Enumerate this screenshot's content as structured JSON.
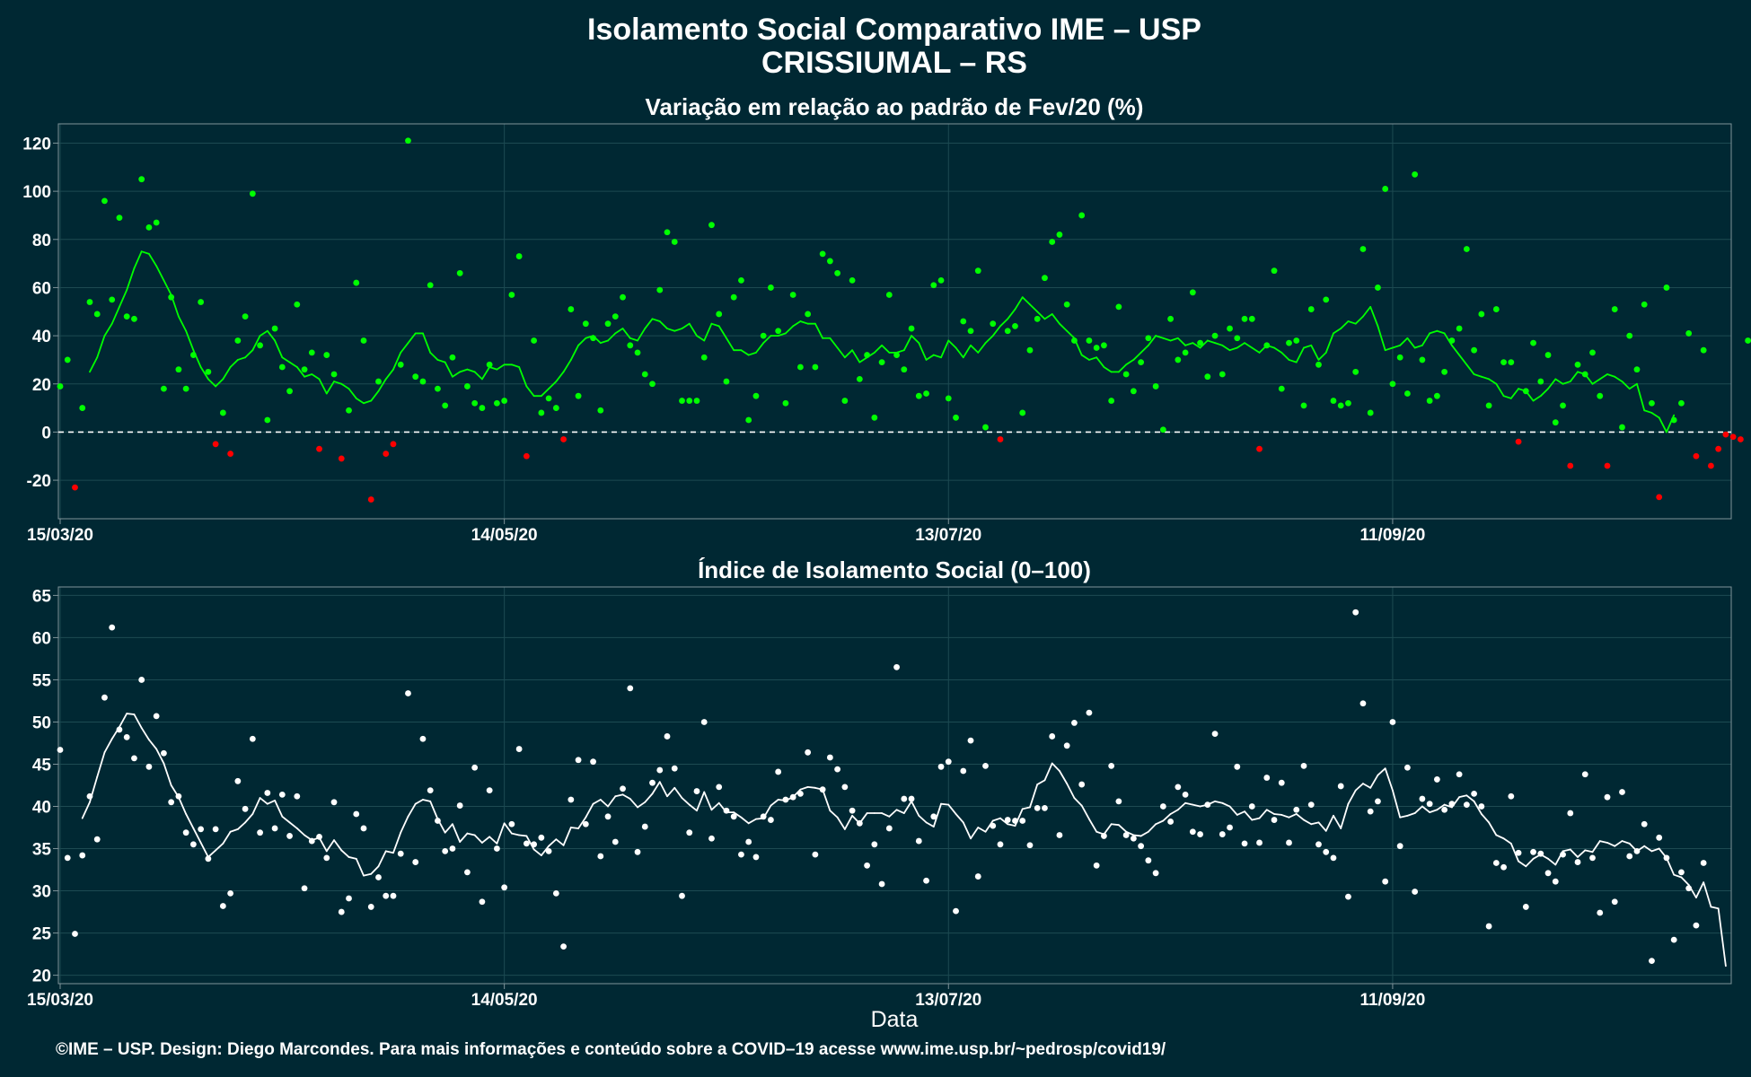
{
  "title": "Isolamento Social Comparativo IME – USP",
  "subtitle": "CRISSIUMAL – RS",
  "xlabel": "Data",
  "caption": "©IME – USP. Design: Diego Marcondes. Para mais informações e conteúdo sobre a COVID–19 acesse www.ime.usp.br/~pedrosp/covid19/",
  "colors": {
    "background": "#002833",
    "positive": "#00ff00",
    "negative": "#ff0000",
    "index": "#ffffff"
  },
  "chart_data": [
    {
      "type": "scatter",
      "title": "Variação em relação ao padrão de Fev/20 (%)",
      "x_start": "15/03/20",
      "x_end": "20/10/20",
      "x_ticks": [
        "15/03/20",
        "14/05/20",
        "13/07/20",
        "11/09/20"
      ],
      "y_ticks": [
        -20,
        0,
        20,
        40,
        60,
        80,
        100,
        120
      ],
      "ylim": [
        -36,
        128
      ],
      "reference_line": 0,
      "points_color_rule": "green if value >= 0, red if value < 0",
      "points": [
        19,
        30,
        -23,
        10,
        54,
        49,
        96,
        55,
        89,
        48,
        47,
        105,
        85,
        87,
        18,
        56,
        26,
        18,
        32,
        54,
        25,
        -5,
        8,
        -9,
        38,
        48,
        99,
        36,
        5,
        43,
        27,
        17,
        53,
        26,
        33,
        -7,
        32,
        24,
        -11,
        9,
        62,
        38,
        -28,
        21,
        -9,
        -5,
        28,
        121,
        23,
        21,
        61,
        18,
        11,
        31,
        66,
        19,
        12,
        10,
        28,
        12,
        13,
        57,
        73,
        -10,
        38,
        8,
        14,
        10,
        -3,
        51,
        15,
        45,
        39,
        9,
        45,
        48,
        56,
        36,
        33,
        24,
        20,
        59,
        83,
        79,
        13,
        13,
        13,
        31,
        86,
        49,
        21,
        56,
        63,
        5,
        15,
        40,
        60,
        42,
        12,
        57,
        27,
        49,
        27,
        74,
        71,
        66,
        13,
        63,
        22,
        32,
        6,
        29,
        57,
        32,
        26,
        43,
        15,
        16,
        61,
        63,
        14,
        6,
        46,
        42,
        67,
        2,
        45,
        -3,
        42,
        44,
        8,
        34,
        47,
        64,
        79,
        82,
        53,
        38,
        90,
        38,
        35,
        36,
        13,
        52,
        24,
        17,
        29,
        39,
        19,
        1,
        47,
        30,
        33,
        58,
        37,
        23,
        40,
        24,
        43,
        39,
        47,
        47,
        -7,
        36,
        67,
        18,
        37,
        38,
        11,
        51,
        28,
        55,
        13,
        11,
        12,
        25,
        76,
        8,
        60,
        101,
        20,
        31,
        16,
        107,
        30,
        13,
        15,
        25,
        38,
        43,
        76,
        34,
        49,
        11,
        51,
        29,
        29,
        -4,
        17,
        37,
        21,
        32,
        4,
        11,
        -14,
        28,
        24,
        33,
        15,
        -14,
        51,
        2,
        40,
        26,
        53,
        12,
        -27,
        60,
        5,
        12,
        41,
        -10,
        34,
        -14,
        -7,
        -1,
        -2,
        -3,
        38
      ],
      "moving_average": [
        null,
        null,
        null,
        null,
        25,
        31,
        40,
        45,
        52,
        59,
        68,
        75,
        74,
        69,
        63,
        57,
        48,
        42,
        34,
        27,
        22,
        19,
        22,
        27,
        30,
        31,
        34,
        40,
        42,
        38,
        31,
        29,
        27,
        23,
        24,
        22,
        16,
        21,
        20,
        18,
        14,
        12,
        13,
        17,
        22,
        26,
        33,
        37,
        41,
        41,
        33,
        30,
        29,
        23,
        25,
        26,
        25,
        22,
        27,
        26,
        28,
        28,
        27,
        19,
        15,
        15,
        18,
        21,
        25,
        30,
        36,
        39,
        40,
        37,
        38,
        41,
        43,
        39,
        38,
        43,
        47,
        46,
        43,
        42,
        43,
        45,
        40,
        38,
        45,
        44,
        39,
        34,
        34,
        32,
        33,
        37,
        40,
        40,
        41,
        44,
        46,
        45,
        45,
        39,
        39,
        35,
        31,
        34,
        29,
        31,
        33,
        36,
        33,
        33,
        34,
        40,
        37,
        30,
        32,
        31,
        38,
        35,
        31,
        36,
        33,
        37,
        40,
        44,
        47,
        51,
        56,
        53,
        50,
        47,
        49,
        45,
        42,
        39,
        32,
        30,
        31,
        27,
        25,
        25,
        28,
        30,
        33,
        36,
        40,
        39,
        38,
        39,
        36,
        37,
        35,
        38,
        37,
        36,
        34,
        35,
        37,
        35,
        33,
        36,
        35,
        33,
        30,
        29,
        35,
        36,
        30,
        33,
        41,
        43,
        46,
        45,
        48,
        52,
        44,
        34,
        35,
        36,
        39,
        35,
        36,
        41,
        42,
        41,
        36,
        32,
        28,
        24,
        23,
        22,
        20,
        15,
        14,
        18,
        17,
        13,
        15,
        18,
        22,
        20,
        21,
        25,
        24,
        20,
        22,
        24,
        23,
        21,
        18,
        20,
        9,
        8,
        6,
        0,
        7
      ]
    },
    {
      "type": "scatter",
      "title": "Índice de Isolamento Social (0–100)",
      "x_start": "15/03/20",
      "x_end": "20/10/20",
      "x_ticks": [
        "15/03/20",
        "14/05/20",
        "13/07/20",
        "11/09/20"
      ],
      "y_ticks": [
        20,
        25,
        30,
        35,
        40,
        45,
        50,
        55,
        60,
        65
      ],
      "ylim": [
        19,
        66
      ],
      "points_color": "white",
      "points": [
        46.7,
        33.9,
        24.9,
        34.2,
        41.2,
        36.1,
        52.9,
        61.2,
        49.1,
        48.2,
        45.7,
        55.0,
        44.7,
        50.7,
        46.3,
        40.5,
        41.2,
        36.9,
        35.5,
        37.3,
        33.8,
        37.3,
        28.2,
        29.7,
        43.0,
        39.7,
        48.0,
        36.9,
        41.6,
        37.4,
        41.4,
        36.5,
        41.2,
        30.3,
        35.9,
        36.4,
        33.9,
        40.5,
        27.5,
        29.1,
        39.1,
        37.4,
        28.1,
        31.6,
        29.4,
        29.4,
        34.4,
        53.4,
        33.4,
        48.0,
        41.9,
        38.3,
        34.7,
        35.0,
        40.1,
        32.2,
        44.6,
        28.7,
        41.9,
        35.0,
        30.4,
        37.9,
        46.8,
        35.6,
        35.5,
        36.3,
        34.7,
        29.7,
        23.4,
        40.8,
        45.5,
        37.9,
        45.3,
        34.1,
        38.8,
        35.8,
        42.1,
        54.0,
        34.6,
        37.6,
        42.8,
        44.3,
        48.3,
        44.5,
        29.4,
        36.9,
        41.8,
        50.0,
        36.2,
        42.3,
        39.5,
        38.8,
        34.3,
        35.8,
        34.0,
        38.8,
        38.4,
        44.1,
        40.8,
        41.1,
        41.5,
        46.4,
        34.3,
        42.0,
        45.8,
        44.4,
        42.3,
        39.5,
        38.0,
        33.0,
        35.5,
        30.8,
        37.4,
        56.5,
        40.9,
        40.9,
        35.9,
        31.2,
        38.8,
        44.7,
        45.3,
        27.6,
        44.2,
        47.8,
        31.7,
        44.8,
        37.7,
        35.5,
        38.4,
        38.3,
        38.3,
        35.4,
        39.8,
        39.8,
        48.3,
        36.6,
        47.2,
        49.9,
        42.6,
        51.1,
        33.0,
        36.5,
        44.8,
        40.6,
        36.6,
        36.2,
        35.3,
        33.6,
        32.1,
        40.0,
        38.2,
        42.3,
        41.4,
        37.0,
        36.7,
        40.2,
        48.6,
        36.7,
        37.5,
        44.7,
        35.6,
        40.0,
        35.7,
        43.4,
        38.4,
        42.8,
        35.7,
        39.6,
        44.8,
        40.2,
        35.5,
        34.6,
        33.9,
        42.4,
        29.3,
        63.0,
        52.2,
        39.4,
        40.6,
        31.1,
        50.0,
        35.3,
        44.6,
        29.9,
        40.9,
        40.3,
        43.2,
        39.6,
        40.3,
        43.8,
        40.2,
        41.5,
        40.0,
        25.8,
        33.3,
        32.8,
        41.2,
        34.5,
        28.1,
        34.6,
        34.4,
        32.1,
        31.1,
        34.3,
        39.2,
        33.4,
        43.8,
        33.9,
        27.4,
        41.1,
        28.7,
        41.7,
        34.1,
        34.7,
        37.9,
        21.7,
        36.3,
        33.9,
        24.2,
        32.2,
        30.3,
        25.9,
        33.3
      ],
      "moving_average": [
        null,
        null,
        null,
        38.6,
        40.5,
        43.5,
        46.4,
        48.0,
        49.4,
        51.0,
        50.9,
        49.3,
        47.9,
        46.8,
        45.1,
        42.5,
        41.1,
        39.1,
        37.4,
        35.7,
        34.0,
        34.8,
        35.6,
        37.0,
        37.3,
        38.1,
        39.1,
        41.0,
        40.3,
        40.7,
        38.8,
        38.1,
        37.4,
        36.6,
        36.0,
        36.3,
        34.7,
        36.0,
        34.8,
        34.0,
        33.8,
        31.8,
        32.0,
        32.9,
        34.7,
        34.5,
        36.9,
        38.8,
        40.3,
        40.8,
        40.6,
        38.5,
        36.9,
        37.9,
        35.8,
        36.8,
        36.6,
        35.7,
        36.4,
        35.6,
        38.0,
        36.8,
        36.6,
        36.5,
        34.9,
        34.2,
        35.3,
        36.1,
        35.4,
        37.5,
        37.4,
        38.7,
        40.3,
        40.8,
        40.0,
        41.2,
        41.4,
        40.9,
        39.9,
        40.5,
        41.5,
        42.9,
        41.2,
        42.2,
        41.0,
        40.2,
        39.5,
        41.7,
        39.6,
        40.4,
        39.3,
        39.3,
        38.7,
        38.0,
        38.5,
        38.6,
        40.1,
        40.8,
        40.7,
        41.1,
        42.0,
        42.3,
        42.2,
        42.0,
        39.5,
        38.7,
        37.3,
        38.9,
        38.0,
        39.2,
        39.2,
        39.2,
        38.8,
        39.6,
        39.2,
        40.6,
        38.9,
        38.1,
        37.6,
        40.3,
        40.2,
        39.1,
        38.1,
        36.2,
        37.5,
        37.0,
        38.3,
        38.6,
        37.9,
        37.7,
        39.7,
        39.9,
        42.6,
        43.1,
        45.1,
        44.2,
        42.7,
        41.0,
        40.1,
        38.5,
        37.0,
        36.7,
        37.9,
        37.8,
        37.0,
        36.6,
        36.5,
        37.0,
        37.9,
        38.3,
        39.1,
        39.6,
        40.4,
        40.2,
        40.0,
        40.2,
        40.6,
        40.4,
        40.0,
        39.0,
        39.4,
        38.4,
        38.6,
        39.6,
        39.1,
        39.0,
        38.7,
        39.1,
        38.4,
        37.9,
        38.1,
        37.1,
        38.9,
        37.4,
        40.3,
        41.9,
        42.7,
        42.2,
        43.7,
        44.5,
        41.9,
        38.7,
        38.9,
        39.2,
        40.0,
        39.3,
        39.6,
        40.2,
        39.9,
        41.1,
        41.3,
        40.6,
        39.1,
        38.1,
        36.6,
        36.2,
        35.6,
        33.5,
        32.9,
        33.8,
        34.3,
        33.8,
        33.1,
        34.7,
        34.9,
        34.0,
        34.8,
        34.6,
        35.9,
        35.7,
        35.3,
        35.9,
        35.6,
        34.7,
        35.3,
        34.7,
        35.0,
        33.9,
        31.9,
        31.6,
        30.7,
        29.2,
        31.0,
        28.1,
        27.9,
        21.1
      ]
    }
  ]
}
